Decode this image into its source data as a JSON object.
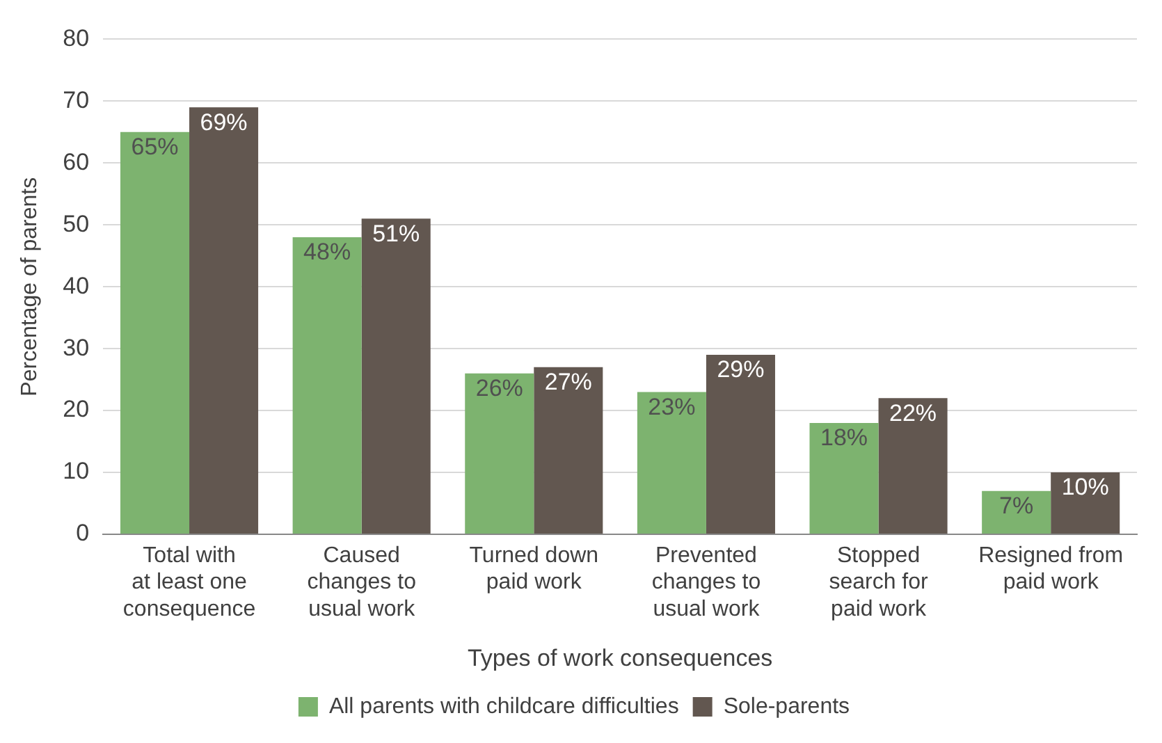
{
  "chart_data": {
    "type": "bar",
    "xlabel": "Types of work consequences",
    "ylabel": "Percentage of parents",
    "categories": [
      "Total with\nat least one\nconsequence",
      "Caused\nchanges to\nusual work",
      "Turned down\npaid work",
      "Prevented\nchanges to\nusual work",
      "Stopped\nsearch for\npaid work",
      "Resigned from\npaid work"
    ],
    "series": [
      {
        "name": "All parents with childcare difficulties",
        "color": "#7db36f",
        "values": [
          65,
          48,
          26,
          23,
          18,
          7
        ],
        "value_labels": [
          "65%",
          "48%",
          "26%",
          "23%",
          "18%",
          "7%"
        ]
      },
      {
        "name": "Sole-parents",
        "color": "#625750",
        "values": [
          69,
          51,
          27,
          29,
          22,
          10
        ],
        "value_labels": [
          "69%",
          "51%",
          "27%",
          "29%",
          "22%",
          "10%"
        ]
      }
    ],
    "ylim": [
      0,
      80
    ],
    "yticks": [
      0,
      10,
      20,
      30,
      40,
      50,
      60,
      70,
      80
    ],
    "grid": "y",
    "legend": "bottom"
  }
}
